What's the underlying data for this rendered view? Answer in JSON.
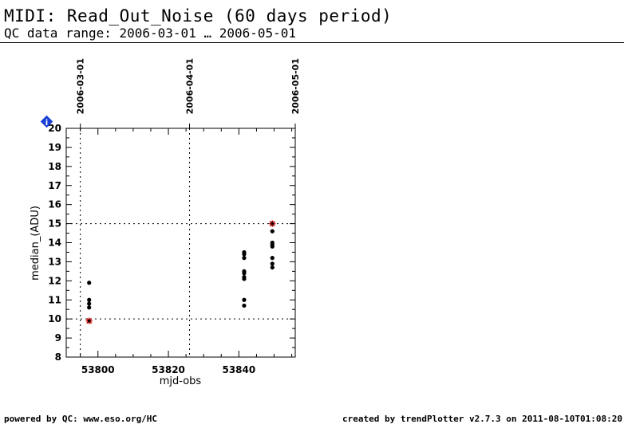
{
  "header": {
    "title": "MIDI: Read_Out_Noise (60 days period)",
    "subtitle": "QC data range: 2006-03-01 … 2006-05-01"
  },
  "footer": {
    "left": "powered by QC: www.eso.org/HC",
    "right": "created by trendPlotter v2.7.3 on 2011-08-10T01:08:20"
  },
  "info_badge": {
    "label": "i",
    "color": "#1a3fd8"
  },
  "chart_data": {
    "type": "scatter",
    "xlabel": "mjd-obs",
    "ylabel": "median_(ADU)",
    "xlim": [
      53791,
      53856
    ],
    "ylim": [
      8,
      20
    ],
    "x_ticks": [
      53800,
      53820,
      53840
    ],
    "y_ticks": [
      8,
      9,
      10,
      11,
      12,
      13,
      14,
      15,
      16,
      17,
      18,
      19,
      20
    ],
    "top_axis_dates": [
      {
        "label": "2006-03-01",
        "mjd": 53795
      },
      {
        "label": "2006-04-01",
        "mjd": 53826
      },
      {
        "label": "2006-05-01",
        "mjd": 53856
      }
    ],
    "threshold_lines": [
      10,
      15
    ],
    "marker_color": "#000000",
    "limit_marker_color": "#cc0000",
    "points": [
      {
        "x": 53797.5,
        "y": 11.9
      },
      {
        "x": 53797.5,
        "y": 11.0
      },
      {
        "x": 53797.5,
        "y": 10.8
      },
      {
        "x": 53797.5,
        "y": 10.6
      },
      {
        "x": 53841.5,
        "y": 13.5
      },
      {
        "x": 53841.5,
        "y": 13.4
      },
      {
        "x": 53841.5,
        "y": 13.2
      },
      {
        "x": 53841.5,
        "y": 12.5
      },
      {
        "x": 53841.5,
        "y": 12.4
      },
      {
        "x": 53841.5,
        "y": 12.2
      },
      {
        "x": 53841.5,
        "y": 12.1
      },
      {
        "x": 53841.5,
        "y": 11.0
      },
      {
        "x": 53841.5,
        "y": 10.7
      },
      {
        "x": 53849.5,
        "y": 14.6
      },
      {
        "x": 53849.5,
        "y": 14.0
      },
      {
        "x": 53849.5,
        "y": 13.9
      },
      {
        "x": 53849.5,
        "y": 13.8
      },
      {
        "x": 53849.5,
        "y": 13.2
      },
      {
        "x": 53849.5,
        "y": 12.9
      },
      {
        "x": 53849.5,
        "y": 12.7
      }
    ],
    "limit_points": [
      {
        "x": 53797.5,
        "y": 9.9
      },
      {
        "x": 53849.5,
        "y": 15.0
      }
    ]
  }
}
